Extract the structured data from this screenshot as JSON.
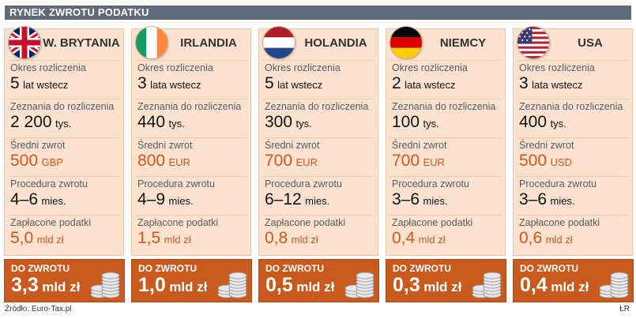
{
  "header": {
    "title": "RYNEK ZWROTU PODATKU"
  },
  "labels": {
    "period": "Okres rozliczenia",
    "returns": "Zeznania do rozliczenia",
    "avg_refund": "Średni zwrot",
    "procedure": "Procedura zwrotu",
    "taxes_paid": "Zapłacone podatki",
    "to_refund": "DO ZWROTU"
  },
  "countries": [
    {
      "name": "W. BRYTANIA",
      "flag_icon": "uk-flag-icon",
      "period_num": "5",
      "period_unit": "lat wstecz",
      "returns_num": "2 200",
      "returns_unit": "tys.",
      "avg_num": "500",
      "avg_unit": "GBP",
      "proc_num": "4–6",
      "proc_unit": "mies.",
      "paid_num": "5,0",
      "paid_unit": "mld zł",
      "refund_num": "3,3",
      "refund_unit": "mld zł"
    },
    {
      "name": "IRLANDIA",
      "flag_icon": "ireland-flag-icon",
      "period_num": "3",
      "period_unit": "lata wstecz",
      "returns_num": "440",
      "returns_unit": "tys.",
      "avg_num": "800",
      "avg_unit": "EUR",
      "proc_num": "4–9",
      "proc_unit": "mies.",
      "paid_num": "1,5",
      "paid_unit": "mld zł",
      "refund_num": "1,0",
      "refund_unit": "mld zł"
    },
    {
      "name": "HOLANDIA",
      "flag_icon": "netherlands-flag-icon",
      "period_num": "5",
      "period_unit": "lat wstecz",
      "returns_num": "300",
      "returns_unit": "tys.",
      "avg_num": "700",
      "avg_unit": "EUR",
      "proc_num": "6–12",
      "proc_unit": "mies.",
      "paid_num": "0,8",
      "paid_unit": "mld zł",
      "refund_num": "0,5",
      "refund_unit": "mld zł"
    },
    {
      "name": "NIEMCY",
      "flag_icon": "germany-flag-icon",
      "period_num": "2",
      "period_unit": "lata wstecz",
      "returns_num": "100",
      "returns_unit": "tys.",
      "avg_num": "700",
      "avg_unit": "EUR",
      "proc_num": "3–6",
      "proc_unit": "mies.",
      "paid_num": "0,4",
      "paid_unit": "mld zł",
      "refund_num": "0,3",
      "refund_unit": "mld zł"
    },
    {
      "name": "USA",
      "flag_icon": "usa-flag-icon",
      "period_num": "3",
      "period_unit": "lata wstecz",
      "returns_num": "400",
      "returns_unit": "tys.",
      "avg_num": "500",
      "avg_unit": "USD",
      "proc_num": "3–6",
      "proc_unit": "mies.",
      "paid_num": "0,6",
      "paid_unit": "mld zł",
      "refund_num": "0,4",
      "refund_unit": "mld zł"
    }
  ],
  "footer": {
    "source": "Źródło: Euro-Tax.pl",
    "credit": "ŁR"
  },
  "colors": {
    "header_bg": "#5f6b78",
    "panel_bg": "#fde3cf",
    "accent": "#d5551c",
    "bottom_bg": "#c95a1e"
  }
}
